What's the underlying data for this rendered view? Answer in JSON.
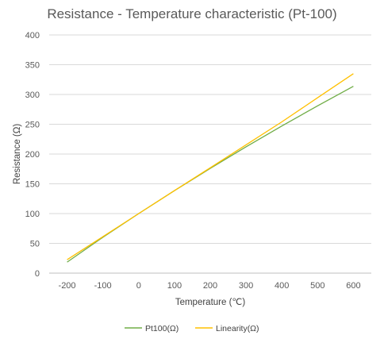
{
  "chart_data": {
    "type": "line",
    "title": "Resistance - Temperature characteristic (Pt-100)",
    "xlabel": "Temperature (℃)",
    "ylabel": "Resistance (Ω)",
    "xlim": [
      -250,
      650
    ],
    "ylim": [
      0,
      400
    ],
    "x_ticks": [
      -200,
      -100,
      0,
      100,
      200,
      300,
      400,
      500,
      600
    ],
    "y_ticks": [
      0,
      50,
      100,
      150,
      200,
      250,
      300,
      350,
      400
    ],
    "grid": true,
    "legend_position": "bottom",
    "series": [
      {
        "name": "Pt100(Ω)",
        "color": "#70ad47",
        "x": [
          -200,
          -100,
          0,
          100,
          200,
          300,
          400,
          500,
          600
        ],
        "y": [
          18.5,
          60.3,
          100,
          138.5,
          175.9,
          212.1,
          247.1,
          280.9,
          313.7
        ]
      },
      {
        "name": "Linearity(Ω)",
        "color": "#ffc000",
        "x": [
          -200,
          -100,
          0,
          100,
          200,
          300,
          400,
          500,
          600
        ],
        "y": [
          22.5,
          61.2,
          100,
          138.5,
          177.0,
          215.5,
          254.0,
          294.5,
          335.0
        ]
      }
    ]
  }
}
